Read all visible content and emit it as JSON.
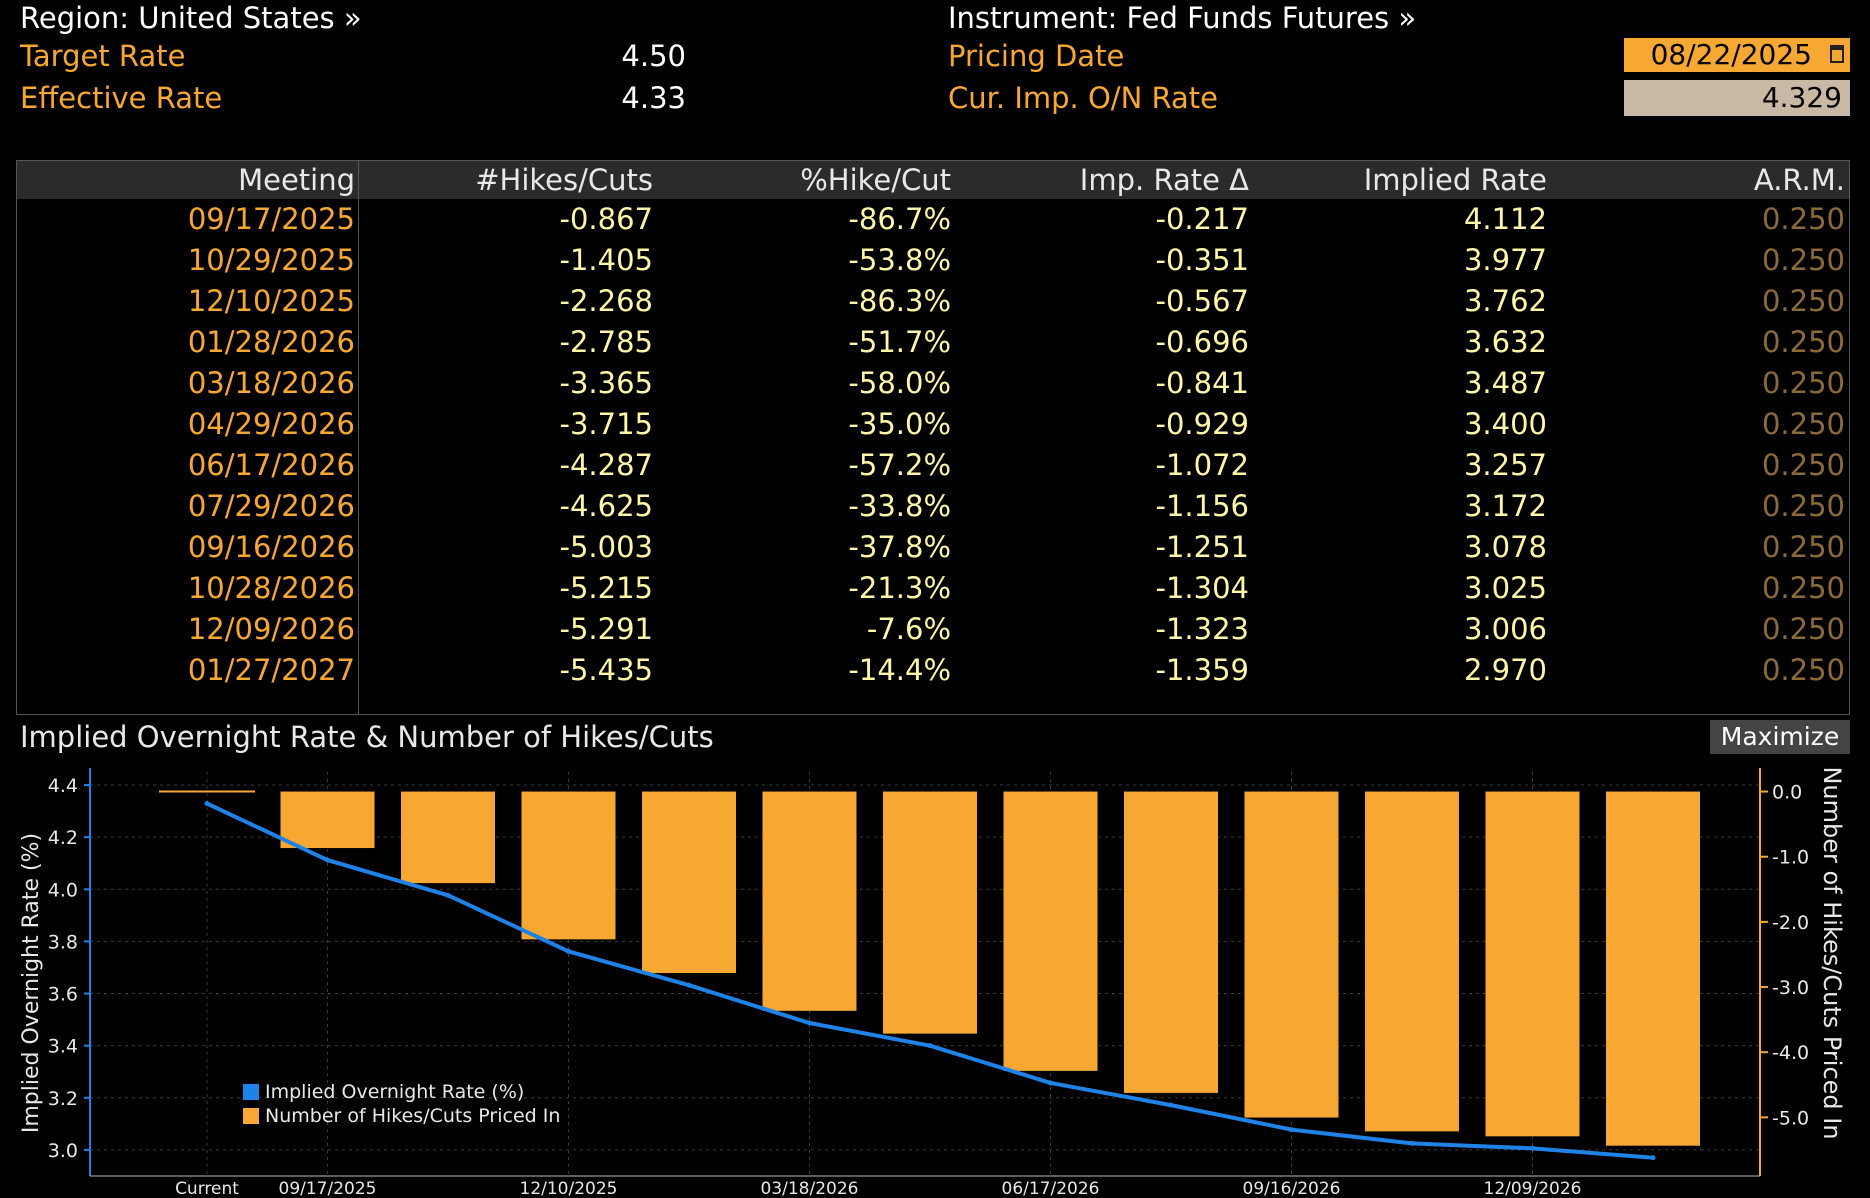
{
  "header": {
    "region": "Region: United States »",
    "instrument": "Instrument: Fed Funds Futures »",
    "target_label": "Target Rate",
    "target_value": "4.50",
    "effective_label": "Effective Rate",
    "effective_value": "4.33",
    "pricing_label": "Pricing Date",
    "pricing_date": "08/22/2025",
    "onrate_label": "Cur. Imp. O/N Rate",
    "onrate_value": "4.329"
  },
  "table": {
    "columns": [
      "Meeting",
      "#Hikes/Cuts",
      "%Hike/Cut",
      "Imp. Rate Δ",
      "Implied Rate",
      "A.R.M."
    ],
    "rows": [
      [
        "09/17/2025",
        "-0.867",
        "-86.7%",
        "-0.217",
        "4.112",
        "0.250"
      ],
      [
        "10/29/2025",
        "-1.405",
        "-53.8%",
        "-0.351",
        "3.977",
        "0.250"
      ],
      [
        "12/10/2025",
        "-2.268",
        "-86.3%",
        "-0.567",
        "3.762",
        "0.250"
      ],
      [
        "01/28/2026",
        "-2.785",
        "-51.7%",
        "-0.696",
        "3.632",
        "0.250"
      ],
      [
        "03/18/2026",
        "-3.365",
        "-58.0%",
        "-0.841",
        "3.487",
        "0.250"
      ],
      [
        "04/29/2026",
        "-3.715",
        "-35.0%",
        "-0.929",
        "3.400",
        "0.250"
      ],
      [
        "06/17/2026",
        "-4.287",
        "-57.2%",
        "-1.072",
        "3.257",
        "0.250"
      ],
      [
        "07/29/2026",
        "-4.625",
        "-33.8%",
        "-1.156",
        "3.172",
        "0.250"
      ],
      [
        "09/16/2026",
        "-5.003",
        "-37.8%",
        "-1.251",
        "3.078",
        "0.250"
      ],
      [
        "10/28/2026",
        "-5.215",
        "-21.3%",
        "-1.304",
        "3.025",
        "0.250"
      ],
      [
        "12/09/2026",
        "-5.291",
        "-7.6%",
        "-1.323",
        "3.006",
        "0.250"
      ],
      [
        "01/27/2027",
        "-5.435",
        "-14.4%",
        "-1.359",
        "2.970",
        "0.250"
      ]
    ]
  },
  "chart_title": "Implied Overnight Rate & Number of Hikes/Cuts",
  "maximize_label": "Maximize",
  "colors": {
    "amber": "#f7a833",
    "line": "#1e82e6",
    "pale": "#fff7a8"
  },
  "chart_data": {
    "type": "bar",
    "title": "Implied Overnight Rate & Number of Hikes/Cuts",
    "categories": [
      "Current",
      "09/17/2025",
      "10/29/2025",
      "12/10/2025",
      "01/28/2026",
      "03/18/2026",
      "04/29/2026",
      "06/17/2026",
      "07/29/2026",
      "09/16/2026",
      "10/28/2026",
      "12/09/2026",
      "01/27/2027"
    ],
    "x_tick_labels": [
      "Current",
      "09/17/2025",
      "12/10/2025",
      "03/18/2026",
      "06/17/2026",
      "09/16/2026",
      "12/09/2026"
    ],
    "series": [
      {
        "name": "Implied Overnight Rate (%)",
        "type": "line",
        "axis": "left",
        "values": [
          4.329,
          4.112,
          3.977,
          3.762,
          3.632,
          3.487,
          3.4,
          3.257,
          3.172,
          3.078,
          3.025,
          3.006,
          2.97
        ]
      },
      {
        "name": "Number of Hikes/Cuts Priced In",
        "type": "bar",
        "axis": "right",
        "values": [
          0,
          -0.867,
          -1.405,
          -2.268,
          -2.785,
          -3.365,
          -3.715,
          -4.287,
          -4.625,
          -5.003,
          -5.215,
          -5.291,
          -5.435
        ]
      }
    ],
    "ylabel": "Implied Overnight Rate (%)",
    "ylabel_right": "Number of Hikes/Cuts Priced In",
    "ylim": [
      2.9,
      4.45
    ],
    "ylim_right": [
      -5.9,
      0.3
    ],
    "yticks": [
      "4.4",
      "4.2",
      "4.0",
      "3.8",
      "3.6",
      "3.4",
      "3.2",
      "3.0"
    ],
    "yticks_right": [
      "0.0",
      "-1.0",
      "-2.0",
      "-3.0",
      "-4.0",
      "-5.0"
    ],
    "grid": true,
    "legend": "bottom-left"
  }
}
